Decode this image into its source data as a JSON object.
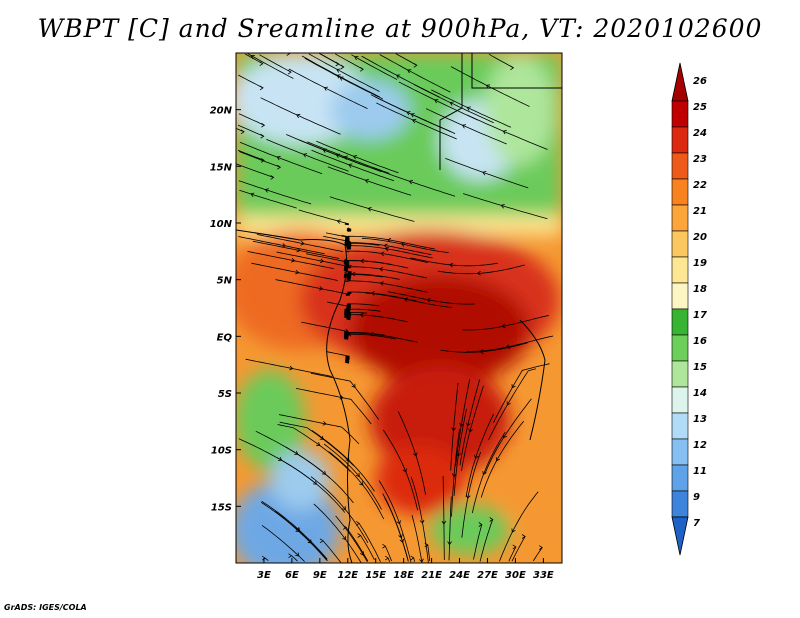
{
  "title": "WBPT [C] and Sreamline at 900hPa, VT: 2020102600",
  "credit": "GrADS: IGES/COLA",
  "map": {
    "lon_range": [
      0,
      35
    ],
    "lat_range": [
      -20,
      25
    ],
    "lon_ticks": [
      "3E",
      "6E",
      "9E",
      "12E",
      "15E",
      "18E",
      "21E",
      "24E",
      "27E",
      "30E",
      "33E"
    ],
    "lat_ticks": [
      "20N",
      "15N",
      "10N",
      "5N",
      "EQ",
      "5S",
      "10S",
      "15S"
    ]
  },
  "colorbar": {
    "levels": [
      "26",
      "25",
      "24",
      "23",
      "22",
      "21",
      "20",
      "19",
      "18",
      "17",
      "16",
      "15",
      "14",
      "13",
      "12",
      "11",
      "9",
      "7"
    ],
    "colors": [
      "#a50000",
      "#c00000",
      "#dc2a10",
      "#ee5a1a",
      "#f8821f",
      "#fba53a",
      "#fcc75f",
      "#fde793",
      "#fbf6c3",
      "#37b432",
      "#6ccf5a",
      "#aee69c",
      "#dcf4ec",
      "#b0dcf8",
      "#86c0f2",
      "#5ea2e8",
      "#3c84dc",
      "#1e62c8"
    ]
  },
  "colors": {
    "warm_core": "#b00c00",
    "hot": "#d8321a",
    "warm": "#ee6a22",
    "orange": "#f59832",
    "cool_green": "#6acb5a",
    "pale_blue": "#c8e4f4",
    "blue": "#6ea8e4"
  }
}
